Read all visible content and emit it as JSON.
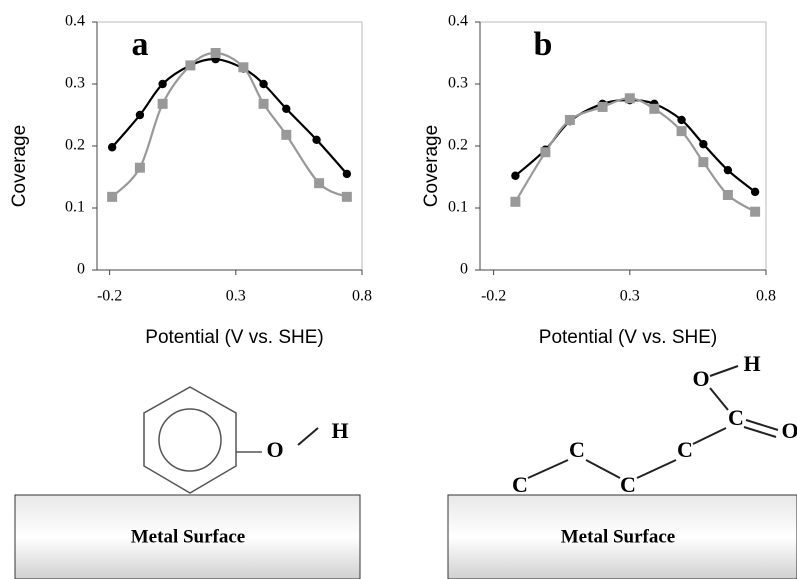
{
  "chart_data": [
    {
      "type": "line",
      "annotation": "a",
      "xlabel": "Potential (V vs. SHE)",
      "ylabel": "Coverage",
      "xlim": [
        -0.25,
        0.8
      ],
      "xticks": [
        -0.2,
        0.3,
        0.8
      ],
      "ylim": [
        0,
        0.4
      ],
      "yticks": [
        0,
        0.1,
        0.2,
        0.3,
        0.4
      ],
      "series": [
        {
          "color": "#000000",
          "marker": "circle",
          "x": [
            -0.19,
            -0.08,
            0.01,
            0.12,
            0.22,
            0.33,
            0.41,
            0.5,
            0.62,
            0.74
          ],
          "values": [
            0.198,
            0.25,
            0.3,
            0.33,
            0.34,
            0.325,
            0.3,
            0.26,
            0.21,
            0.155
          ]
        },
        {
          "color": "#999999",
          "marker": "square",
          "x": [
            -0.19,
            -0.08,
            0.01,
            0.12,
            0.22,
            0.33,
            0.41,
            0.5,
            0.63,
            0.74
          ],
          "values": [
            0.118,
            0.165,
            0.268,
            0.33,
            0.35,
            0.327,
            0.268,
            0.218,
            0.14,
            0.118
          ]
        }
      ]
    },
    {
      "type": "line",
      "annotation": "b",
      "xlabel": "Potential (V vs. SHE)",
      "ylabel": "Coverage",
      "xlim": [
        -0.25,
        0.8
      ],
      "xticks": [
        -0.2,
        0.3,
        0.8
      ],
      "ylim": [
        0,
        0.4
      ],
      "yticks": [
        0,
        0.1,
        0.2,
        0.3,
        0.4
      ],
      "series": [
        {
          "color": "#000000",
          "marker": "circle",
          "x": [
            -0.12,
            -0.01,
            0.08,
            0.2,
            0.3,
            0.39,
            0.49,
            0.57,
            0.66,
            0.76
          ],
          "values": [
            0.152,
            0.194,
            0.24,
            0.268,
            0.274,
            0.268,
            0.242,
            0.203,
            0.161,
            0.126
          ]
        },
        {
          "color": "#999999",
          "marker": "square",
          "x": [
            -0.12,
            -0.01,
            0.08,
            0.2,
            0.3,
            0.39,
            0.49,
            0.57,
            0.66,
            0.76
          ],
          "values": [
            0.11,
            0.19,
            0.242,
            0.263,
            0.277,
            0.26,
            0.224,
            0.174,
            0.121,
            0.094
          ]
        }
      ]
    }
  ],
  "diagrams": [
    {
      "labels": [
        "O",
        "H"
      ],
      "surface": "Metal Surface"
    },
    {
      "labels": [
        "C",
        "C",
        "C",
        "C",
        "C",
        "O",
        "H",
        "O"
      ],
      "surface": "Metal Surface"
    }
  ]
}
